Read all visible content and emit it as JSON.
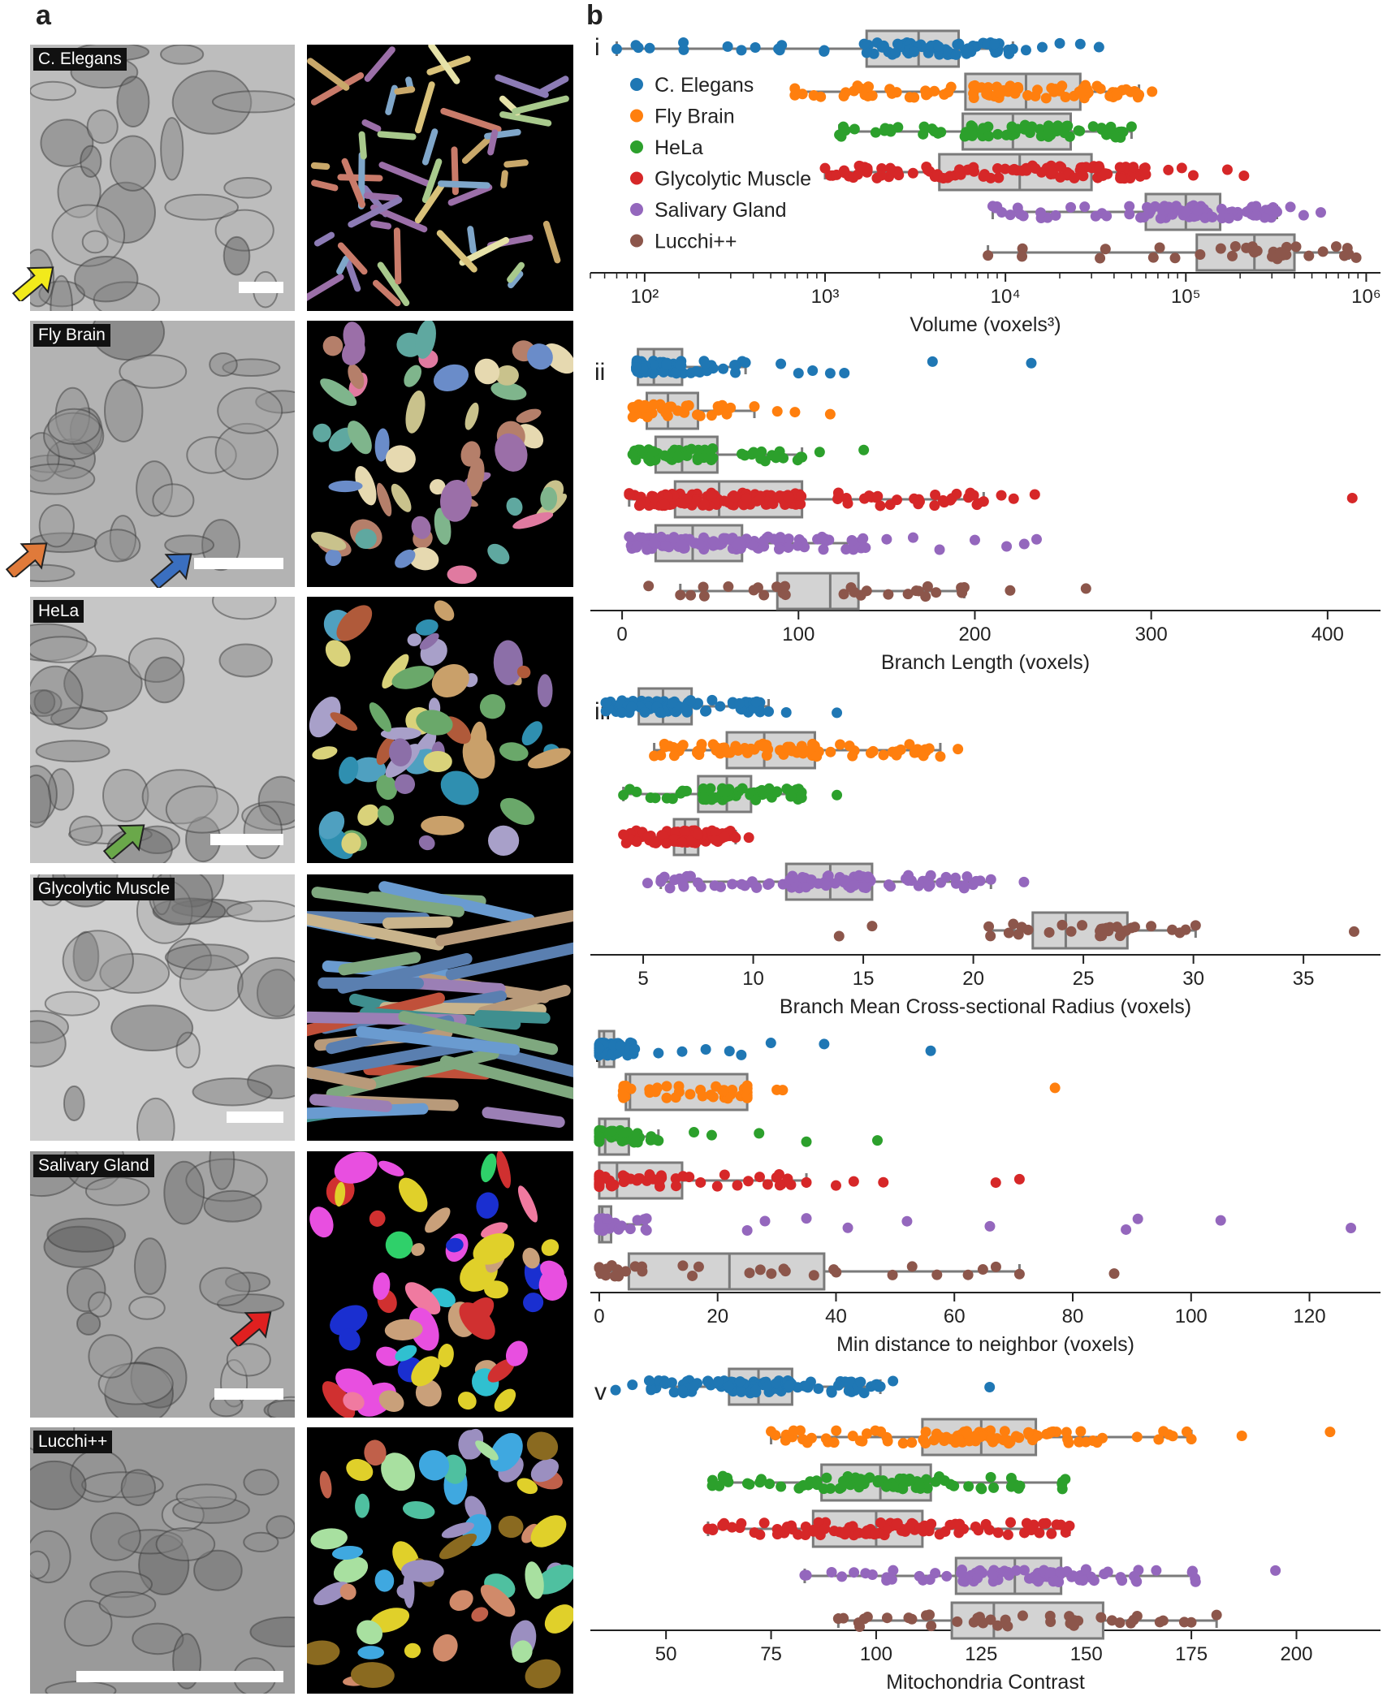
{
  "panel_a": {
    "letter": "a",
    "rows": [
      {
        "label": "C. Elegans",
        "arrow_color": "#f2ea1b",
        "em_tone": "#bdbdbd",
        "palette": [
          "#c9a86a",
          "#8c7bb5",
          "#d9c27a",
          "#7fa6c9",
          "#c97b6a",
          "#e6e2a8",
          "#9b6fa8",
          "#a8c98c"
        ]
      },
      {
        "label": "Fly Brain",
        "arrow_color": "#e07a3a",
        "arrow2_color": "#3a6fc0",
        "em_tone": "#b3b3b3",
        "palette": [
          "#9b6fa8",
          "#5fa8a0",
          "#c9c28c",
          "#e6d9b0",
          "#7fb58c",
          "#e07aa0",
          "#6a8cc9",
          "#b57f6a"
        ]
      },
      {
        "label": "HeLa",
        "arrow_color": "#6aa84a",
        "em_tone": "#c6c6c6",
        "palette": [
          "#4fa0c0",
          "#8c6fa8",
          "#c9a06a",
          "#6aa86a",
          "#2f8fb0",
          "#b05a3a",
          "#a8a0c9",
          "#d9d27a"
        ]
      },
      {
        "label": "Glycolytic Muscle",
        "em_tone": "#cfcfcf",
        "palette": [
          "#3f8f8f",
          "#b89a7a",
          "#6a9bd0",
          "#9b7fb5",
          "#c9b48c",
          "#c0503a",
          "#7fa87f",
          "#5a7fb0"
        ]
      },
      {
        "label": "Salivary Gland",
        "arrow_color": "#e02020",
        "em_tone": "#a9a9a9",
        "palette": [
          "#e84fe0",
          "#1a2fd0",
          "#f07aa0",
          "#c9a07a",
          "#2fd06a",
          "#e0d02a",
          "#30c0d0",
          "#d03030"
        ]
      },
      {
        "label": "Lucchi++",
        "em_tone": "#9a9a9a",
        "palette": [
          "#3fa8e0",
          "#e0d02a",
          "#c0604a",
          "#a8e0a0",
          "#9b8fc0",
          "#8a6a20",
          "#d08a6a",
          "#4fc0a0"
        ]
      }
    ]
  },
  "panel_b": {
    "letter": "b"
  },
  "chart_data": [
    {
      "type": "box",
      "roman": "i",
      "xlabel": "Volume (voxels³)",
      "xscale": "log",
      "xlim": [
        50,
        1200000
      ],
      "ticks": [
        100,
        1000,
        10000,
        100000,
        1000000
      ],
      "tick_labels": [
        "10²",
        "10³",
        "10⁴",
        "10⁵",
        "10⁶"
      ],
      "legend": {
        "position": "upper-left",
        "entries": [
          "C. Elegans",
          "Fly Brain",
          "HeLa",
          "Glycolytic Muscle",
          "Salivary Gland",
          "Lucchi++"
        ]
      },
      "series": [
        {
          "name": "C. Elegans",
          "color": "#1f77b4",
          "whisker_low": 70,
          "q1": 1700,
          "median": 3300,
          "q3": 5500,
          "whisker_high": 11000,
          "outliers": [
            13000,
            16000,
            20000,
            26000,
            33000
          ],
          "n": 80
        },
        {
          "name": "Fly Brain",
          "color": "#ff7f0e",
          "whisker_low": 680,
          "q1": 6000,
          "median": 13000,
          "q3": 26000,
          "whisker_high": 55000,
          "outliers": [
            65000
          ],
          "n": 90
        },
        {
          "name": "HeLa",
          "color": "#2ca02c",
          "whisker_low": 1200,
          "q1": 5800,
          "median": 11000,
          "q3": 23000,
          "whisker_high": 50000,
          "outliers": [],
          "n": 70
        },
        {
          "name": "Glycolytic Muscle",
          "color": "#d62728",
          "whisker_low": 1000,
          "q1": 4300,
          "median": 12000,
          "q3": 30000,
          "whisker_high": 60000,
          "outliers": [
            80000,
            95000,
            110000,
            170000,
            210000
          ],
          "n": 100
        },
        {
          "name": "Salivary Gland",
          "color": "#9467bd",
          "whisker_low": 8500,
          "q1": 60000,
          "median": 100000,
          "q3": 155000,
          "whisker_high": 320000,
          "outliers": [
            380000,
            450000,
            560000
          ],
          "n": 90
        },
        {
          "name": "Lucchi++",
          "color": "#8c564b",
          "whisker_low": 8000,
          "q1": 115000,
          "median": 240000,
          "q3": 400000,
          "whisker_high": 800000,
          "outliers": [
            880000
          ],
          "n": 30
        }
      ]
    },
    {
      "type": "box",
      "roman": "ii",
      "xlabel": "Branch Length (voxels)",
      "xscale": "linear",
      "xlim": [
        -18,
        430
      ],
      "ticks": [
        0,
        100,
        200,
        300,
        400
      ],
      "tick_labels": [
        "0",
        "100",
        "200",
        "300",
        "400"
      ],
      "series": [
        {
          "name": "C. Elegans",
          "color": "#1f77b4",
          "whisker_low": 8,
          "q1": 9,
          "median": 18,
          "q3": 34,
          "whisker_high": 70,
          "outliers": [
            90,
            100,
            108,
            118,
            126,
            176,
            232
          ],
          "n": 60
        },
        {
          "name": "Fly Brain",
          "color": "#ff7f0e",
          "whisker_low": 6,
          "q1": 14,
          "median": 26,
          "q3": 43,
          "whisker_high": 75,
          "outliers": [
            88,
            98,
            118
          ],
          "n": 40
        },
        {
          "name": "HeLa",
          "color": "#2ca02c",
          "whisker_low": 6,
          "q1": 19,
          "median": 34,
          "q3": 54,
          "whisker_high": 102,
          "outliers": [
            112,
            137
          ],
          "n": 60
        },
        {
          "name": "Glycolytic Muscle",
          "color": "#d62728",
          "whisker_low": 4,
          "q1": 30,
          "median": 55,
          "q3": 102,
          "whisker_high": 205,
          "outliers": [
            215,
            222,
            234,
            414
          ],
          "n": 150
        },
        {
          "name": "Salivary Gland",
          "color": "#9467bd",
          "whisker_low": 4,
          "q1": 19,
          "median": 40,
          "q3": 68,
          "whisker_high": 138,
          "outliers": [
            150,
            165,
            180,
            200,
            218,
            228,
            235
          ],
          "n": 110
        },
        {
          "name": "Lucchi++",
          "color": "#8c564b",
          "whisker_low": 33,
          "q1": 88,
          "median": 118,
          "q3": 134,
          "whisker_high": 194,
          "outliers": [
            15,
            220,
            263
          ],
          "n": 25
        }
      ]
    },
    {
      "type": "box",
      "roman": "iii",
      "xlabel": "Branch Mean Cross-sectional Radius (voxels)",
      "xscale": "linear",
      "xlim": [
        2.6,
        38.5
      ],
      "ticks": [
        5,
        10,
        15,
        20,
        25,
        30,
        35
      ],
      "tick_labels": [
        "5",
        "10",
        "15",
        "20",
        "25",
        "30",
        "35"
      ],
      "series": [
        {
          "name": "C. Elegans",
          "color": "#1f77b4",
          "whisker_low": 3.3,
          "q1": 4.8,
          "median": 5.9,
          "q3": 7.2,
          "whisker_high": 10.7,
          "outliers": [
            11.5,
            13.8
          ],
          "n": 90
        },
        {
          "name": "Fly Brain",
          "color": "#ff7f0e",
          "whisker_low": 5.5,
          "q1": 8.8,
          "median": 10.5,
          "q3": 12.8,
          "whisker_high": 18.5,
          "outliers": [
            19.3
          ],
          "n": 80
        },
        {
          "name": "HeLa",
          "color": "#2ca02c",
          "whisker_low": 4.1,
          "q1": 7.5,
          "median": 8.8,
          "q3": 9.9,
          "whisker_high": 12.2,
          "outliers": [
            13.8
          ],
          "n": 60
        },
        {
          "name": "Glycolytic Muscle",
          "color": "#d62728",
          "whisker_low": 4.1,
          "q1": 6.4,
          "median": 6.9,
          "q3": 7.5,
          "whisker_high": 9.2,
          "outliers": [
            9.8
          ],
          "n": 90
        },
        {
          "name": "Salivary Gland",
          "color": "#9467bd",
          "whisker_low": 5.8,
          "q1": 11.5,
          "median": 13.5,
          "q3": 15.4,
          "whisker_high": 20.8,
          "outliers": [
            22.3,
            5.2
          ],
          "n": 100
        },
        {
          "name": "Lucchi++",
          "color": "#8c564b",
          "whisker_low": 20.7,
          "q1": 22.7,
          "median": 24.2,
          "q3": 27.0,
          "whisker_high": 30.1,
          "outliers": [
            13.9,
            15.4,
            37.3
          ],
          "n": 30
        }
      ]
    },
    {
      "type": "box",
      "roman": "iv",
      "xlabel": "Min distance to neighbor (voxels)",
      "xscale": "linear",
      "xlim": [
        -1.5,
        132
      ],
      "ticks": [
        0,
        20,
        40,
        60,
        80,
        100,
        120
      ],
      "tick_labels": [
        "0",
        "20",
        "40",
        "60",
        "80",
        "100",
        "120"
      ],
      "series": [
        {
          "name": "C. Elegans",
          "color": "#1f77b4",
          "whisker_low": 0,
          "q1": 0,
          "median": 0.8,
          "q3": 2.5,
          "whisker_high": 6,
          "outliers": [
            10,
            14,
            18,
            22,
            24,
            29,
            38,
            56
          ],
          "n": 90
        },
        {
          "name": "Fly Brain",
          "color": "#ff7f0e",
          "whisker_low": 4,
          "q1": 4.5,
          "median": 5.2,
          "q3": 25,
          "whisker_high": 25,
          "outliers": [
            30,
            31,
            77
          ],
          "n": 50
        },
        {
          "name": "HeLa",
          "color": "#2ca02c",
          "whisker_low": 0,
          "q1": 0,
          "median": 1,
          "q3": 5,
          "whisker_high": 10,
          "outliers": [
            16,
            19,
            27,
            35,
            47
          ],
          "n": 40
        },
        {
          "name": "Glycolytic Muscle",
          "color": "#d62728",
          "whisker_low": 0,
          "q1": 0,
          "median": 3,
          "q3": 14,
          "whisker_high": 35,
          "outliers": [
            40,
            43,
            48,
            67,
            71
          ],
          "n": 60
        },
        {
          "name": "Salivary Gland",
          "color": "#9467bd",
          "whisker_low": 0,
          "q1": 0,
          "median": 0.5,
          "q3": 2,
          "whisker_high": 8,
          "outliers": [
            25,
            28,
            35,
            42,
            52,
            66,
            89,
            91,
            105,
            127
          ],
          "n": 40
        },
        {
          "name": "Lucchi++",
          "color": "#8c564b",
          "whisker_low": 0,
          "q1": 5,
          "median": 22,
          "q3": 38,
          "whisker_high": 71,
          "outliers": [
            87
          ],
          "n": 30
        }
      ]
    },
    {
      "type": "box",
      "roman": "v",
      "xlabel": "Mitochondria Contrast",
      "xscale": "linear",
      "xlim": [
        32,
        220
      ],
      "ticks": [
        50,
        75,
        100,
        125,
        150,
        175,
        200
      ],
      "tick_labels": [
        "50",
        "75",
        "100",
        "125",
        "150",
        "175",
        "200"
      ],
      "series": [
        {
          "name": "C. Elegans",
          "color": "#1f77b4",
          "whisker_low": 46,
          "q1": 65,
          "median": 72,
          "q3": 80,
          "whisker_high": 101,
          "outliers": [
            38,
            42,
            104,
            127
          ],
          "n": 110
        },
        {
          "name": "Fly Brain",
          "color": "#ff7f0e",
          "whisker_low": 75,
          "q1": 111,
          "median": 125,
          "q3": 138,
          "whisker_high": 175,
          "outliers": [
            187,
            208
          ],
          "n": 100
        },
        {
          "name": "HeLa",
          "color": "#2ca02c",
          "whisker_low": 61,
          "q1": 87,
          "median": 101,
          "q3": 113,
          "whisker_high": 145,
          "outliers": [],
          "n": 80
        },
        {
          "name": "Glycolytic Muscle",
          "color": "#d62728",
          "whisker_low": 60,
          "q1": 85,
          "median": 100,
          "q3": 111,
          "whisker_high": 146,
          "outliers": [],
          "n": 100
        },
        {
          "name": "Salivary Gland",
          "color": "#9467bd",
          "whisker_low": 83,
          "q1": 119,
          "median": 133,
          "q3": 144,
          "whisker_high": 176,
          "outliers": [
            195
          ],
          "n": 90
        },
        {
          "name": "Lucchi++",
          "color": "#8c564b",
          "whisker_low": 91,
          "q1": 118,
          "median": 128,
          "q3": 154,
          "whisker_high": 181,
          "outliers": [],
          "n": 40
        }
      ]
    }
  ]
}
